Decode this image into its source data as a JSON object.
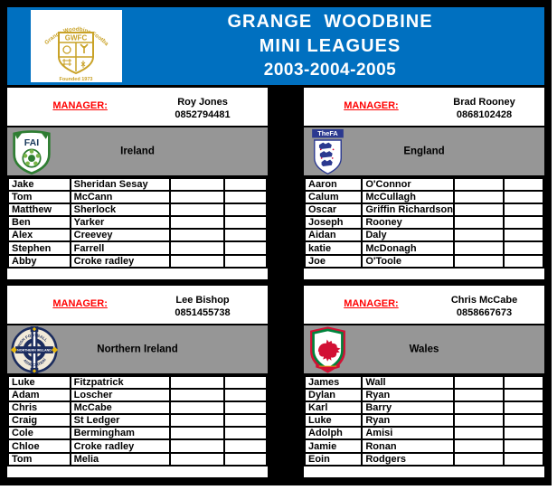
{
  "header": {
    "title_line1": "GRANGE  WOODBINE",
    "title_line2": "MINI LEAGUES",
    "title_line3": "2003-2004-2005",
    "club_crest": {
      "arc_text": "Grange Woodbine Football Club",
      "initials": "GWFC",
      "founded": "Founded 1973"
    }
  },
  "labels": {
    "manager": "MANAGER:"
  },
  "colors": {
    "header_blue": "#0070C0",
    "banner_gray": "#969696",
    "manager_red": "#FF0000",
    "frame_black": "#000000",
    "crest_gold": "#C9A227",
    "fai_green": "#2E7D32",
    "fa_navy": "#2B3990",
    "ifa_navy": "#1B2C5E",
    "wales_red": "#D21034",
    "wales_green": "#00843D"
  },
  "crest_texts": {
    "fa_banner": "TheFA",
    "fai_initials": "FAI",
    "ifa_top_arc": "IRISH FOOTBALL",
    "ifa_band": "NORTHERN IRELAND",
    "ifa_bottom_arc": "ASSOCIATION"
  },
  "panels": [
    {
      "team": "Ireland",
      "crest": "fai",
      "manager": {
        "name": "Roy Jones",
        "phone": "0852794481"
      },
      "players": [
        {
          "first": "Jake",
          "last": "Sheridan Sesay"
        },
        {
          "first": "Tom",
          "last": "McCann"
        },
        {
          "first": "Matthew",
          "last": "Sherlock"
        },
        {
          "first": "Ben",
          "last": "Yarker"
        },
        {
          "first": "Alex",
          "last": "Creevey"
        },
        {
          "first": "Stephen",
          "last": "Farrell"
        },
        {
          "first": "Abby",
          "last": "Croke radley"
        }
      ]
    },
    {
      "team": "England",
      "crest": "fa",
      "manager": {
        "name": "Brad Rooney",
        "phone": "0868102428"
      },
      "players": [
        {
          "first": "Aaron",
          "last": "O'Connor"
        },
        {
          "first": "Calum",
          "last": "McCullagh"
        },
        {
          "first": "Oscar",
          "last": "Griffin Richardson"
        },
        {
          "first": "Joseph",
          "last": "Rooney"
        },
        {
          "first": "Aidan",
          "last": "Daly"
        },
        {
          "first": "katie",
          "last": "McDonagh"
        },
        {
          "first": "Joe",
          "last": "O'Toole"
        }
      ]
    },
    {
      "team": "Northern Ireland",
      "crest": "ifa",
      "manager": {
        "name": "Lee Bishop",
        "phone": "0851455738"
      },
      "players": [
        {
          "first": "Luke",
          "last": "Fitzpatrick"
        },
        {
          "first": "Adam",
          "last": "Loscher"
        },
        {
          "first": "Chris",
          "last": "McCabe"
        },
        {
          "first": "Craig",
          "last": "St Ledger"
        },
        {
          "first": "Cole",
          "last": "Bermingham"
        },
        {
          "first": "Chloe",
          "last": "Croke radley"
        },
        {
          "first": "Tom",
          "last": "Melia"
        }
      ]
    },
    {
      "team": "Wales",
      "crest": "wales",
      "manager": {
        "name": "Chris McCabe",
        "phone": "0858667673"
      },
      "players": [
        {
          "first": "James",
          "last": "Wall"
        },
        {
          "first": "Dylan",
          "last": "Ryan"
        },
        {
          "first": "Karl",
          "last": "Barry"
        },
        {
          "first": "Luke",
          "last": "Ryan"
        },
        {
          "first": "Adolph",
          "last": "Amisi"
        },
        {
          "first": "Jamie",
          "last": "Ronan"
        },
        {
          "first": "Eoin",
          "last": "Rodgers"
        }
      ]
    }
  ]
}
